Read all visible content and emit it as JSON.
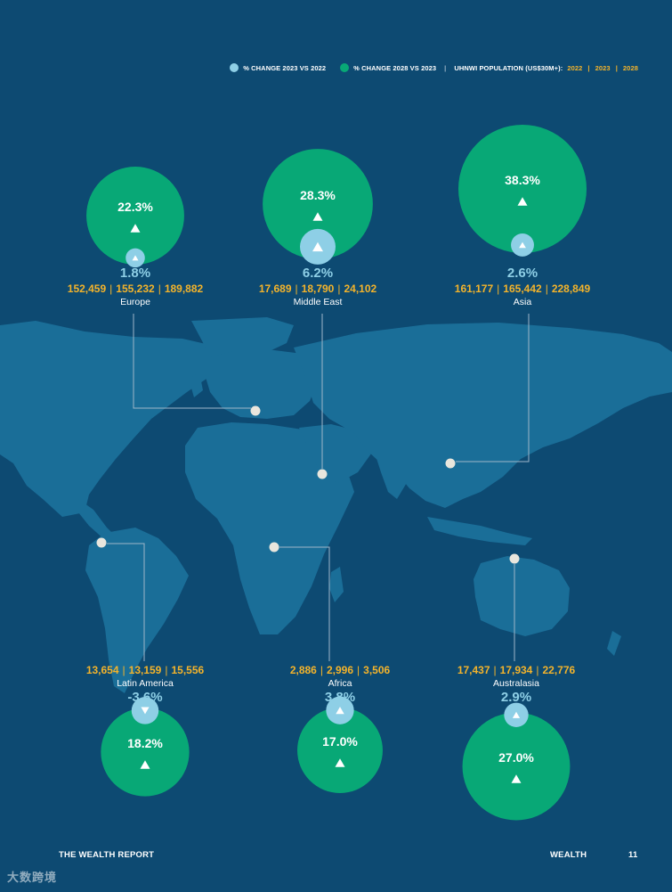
{
  "legend": {
    "item1_label": "% CHANGE 2023 VS 2022",
    "item1_color": "#8ecfe6",
    "item2_label": "% CHANGE 2028 VS 2023",
    "item2_color": "#08a876",
    "item3_label": "UHNWI POPULATION (US$30M+):",
    "year1": "2022",
    "year2": "2023",
    "year3": "2028",
    "year_color": "#f3b32b"
  },
  "chart_data": {
    "type": "bubble-map",
    "regions": [
      {
        "key": "europe",
        "name": "Europe",
        "change_2023_vs_2022": "1.8%",
        "change_2023_value": 1.8,
        "change_2028_vs_2023": "22.3%",
        "change_2028_value": 22.3,
        "pop_2022": "152,459",
        "pop_2023": "155,232",
        "pop_2028": "189,882",
        "direction_2023": "up",
        "direction_2028": "up"
      },
      {
        "key": "middle_east",
        "name": "Middle East",
        "change_2023_vs_2022": "6.2%",
        "change_2023_value": 6.2,
        "change_2028_vs_2023": "28.3%",
        "change_2028_value": 28.3,
        "pop_2022": "17,689",
        "pop_2023": "18,790",
        "pop_2028": "24,102",
        "direction_2023": "up",
        "direction_2028": "up"
      },
      {
        "key": "asia",
        "name": "Asia",
        "change_2023_vs_2022": "2.6%",
        "change_2023_value": 2.6,
        "change_2028_vs_2023": "38.3%",
        "change_2028_value": 38.3,
        "pop_2022": "161,177",
        "pop_2023": "165,442",
        "pop_2028": "228,849",
        "direction_2023": "up",
        "direction_2028": "up"
      },
      {
        "key": "latin_america",
        "name": "Latin America",
        "change_2023_vs_2022": "-3.6%",
        "change_2023_value": -3.6,
        "change_2028_vs_2023": "18.2%",
        "change_2028_value": 18.2,
        "pop_2022": "13,654",
        "pop_2023": "13,159",
        "pop_2028": "15,556",
        "direction_2023": "down",
        "direction_2028": "up"
      },
      {
        "key": "africa",
        "name": "Africa",
        "change_2023_vs_2022": "3.8%",
        "change_2023_value": 3.8,
        "change_2028_vs_2023": "17.0%",
        "change_2028_value": 17.0,
        "pop_2022": "2,886",
        "pop_2023": "2,996",
        "pop_2028": "3,506",
        "direction_2023": "up",
        "direction_2028": "up"
      },
      {
        "key": "australasia",
        "name": "Australasia",
        "change_2023_vs_2022": "2.9%",
        "change_2023_value": 2.9,
        "change_2028_vs_2023": "27.0%",
        "change_2028_value": 27.0,
        "pop_2022": "17,437",
        "pop_2023": "17,934",
        "pop_2028": "22,776",
        "direction_2023": "up",
        "direction_2028": "up"
      }
    ]
  },
  "colors": {
    "background": "#0d4a72",
    "land": "#1a6e98",
    "bubble_2028": "#08a876",
    "bubble_2023": "#8ecfe6",
    "population": "#f3b32b",
    "connector": "#9fb7c9",
    "marker": "#e9e6dd"
  },
  "footer": {
    "left": "THE WEALTH REPORT",
    "section": "WEALTH",
    "page": "11"
  },
  "watermark_text": "大数跨境"
}
